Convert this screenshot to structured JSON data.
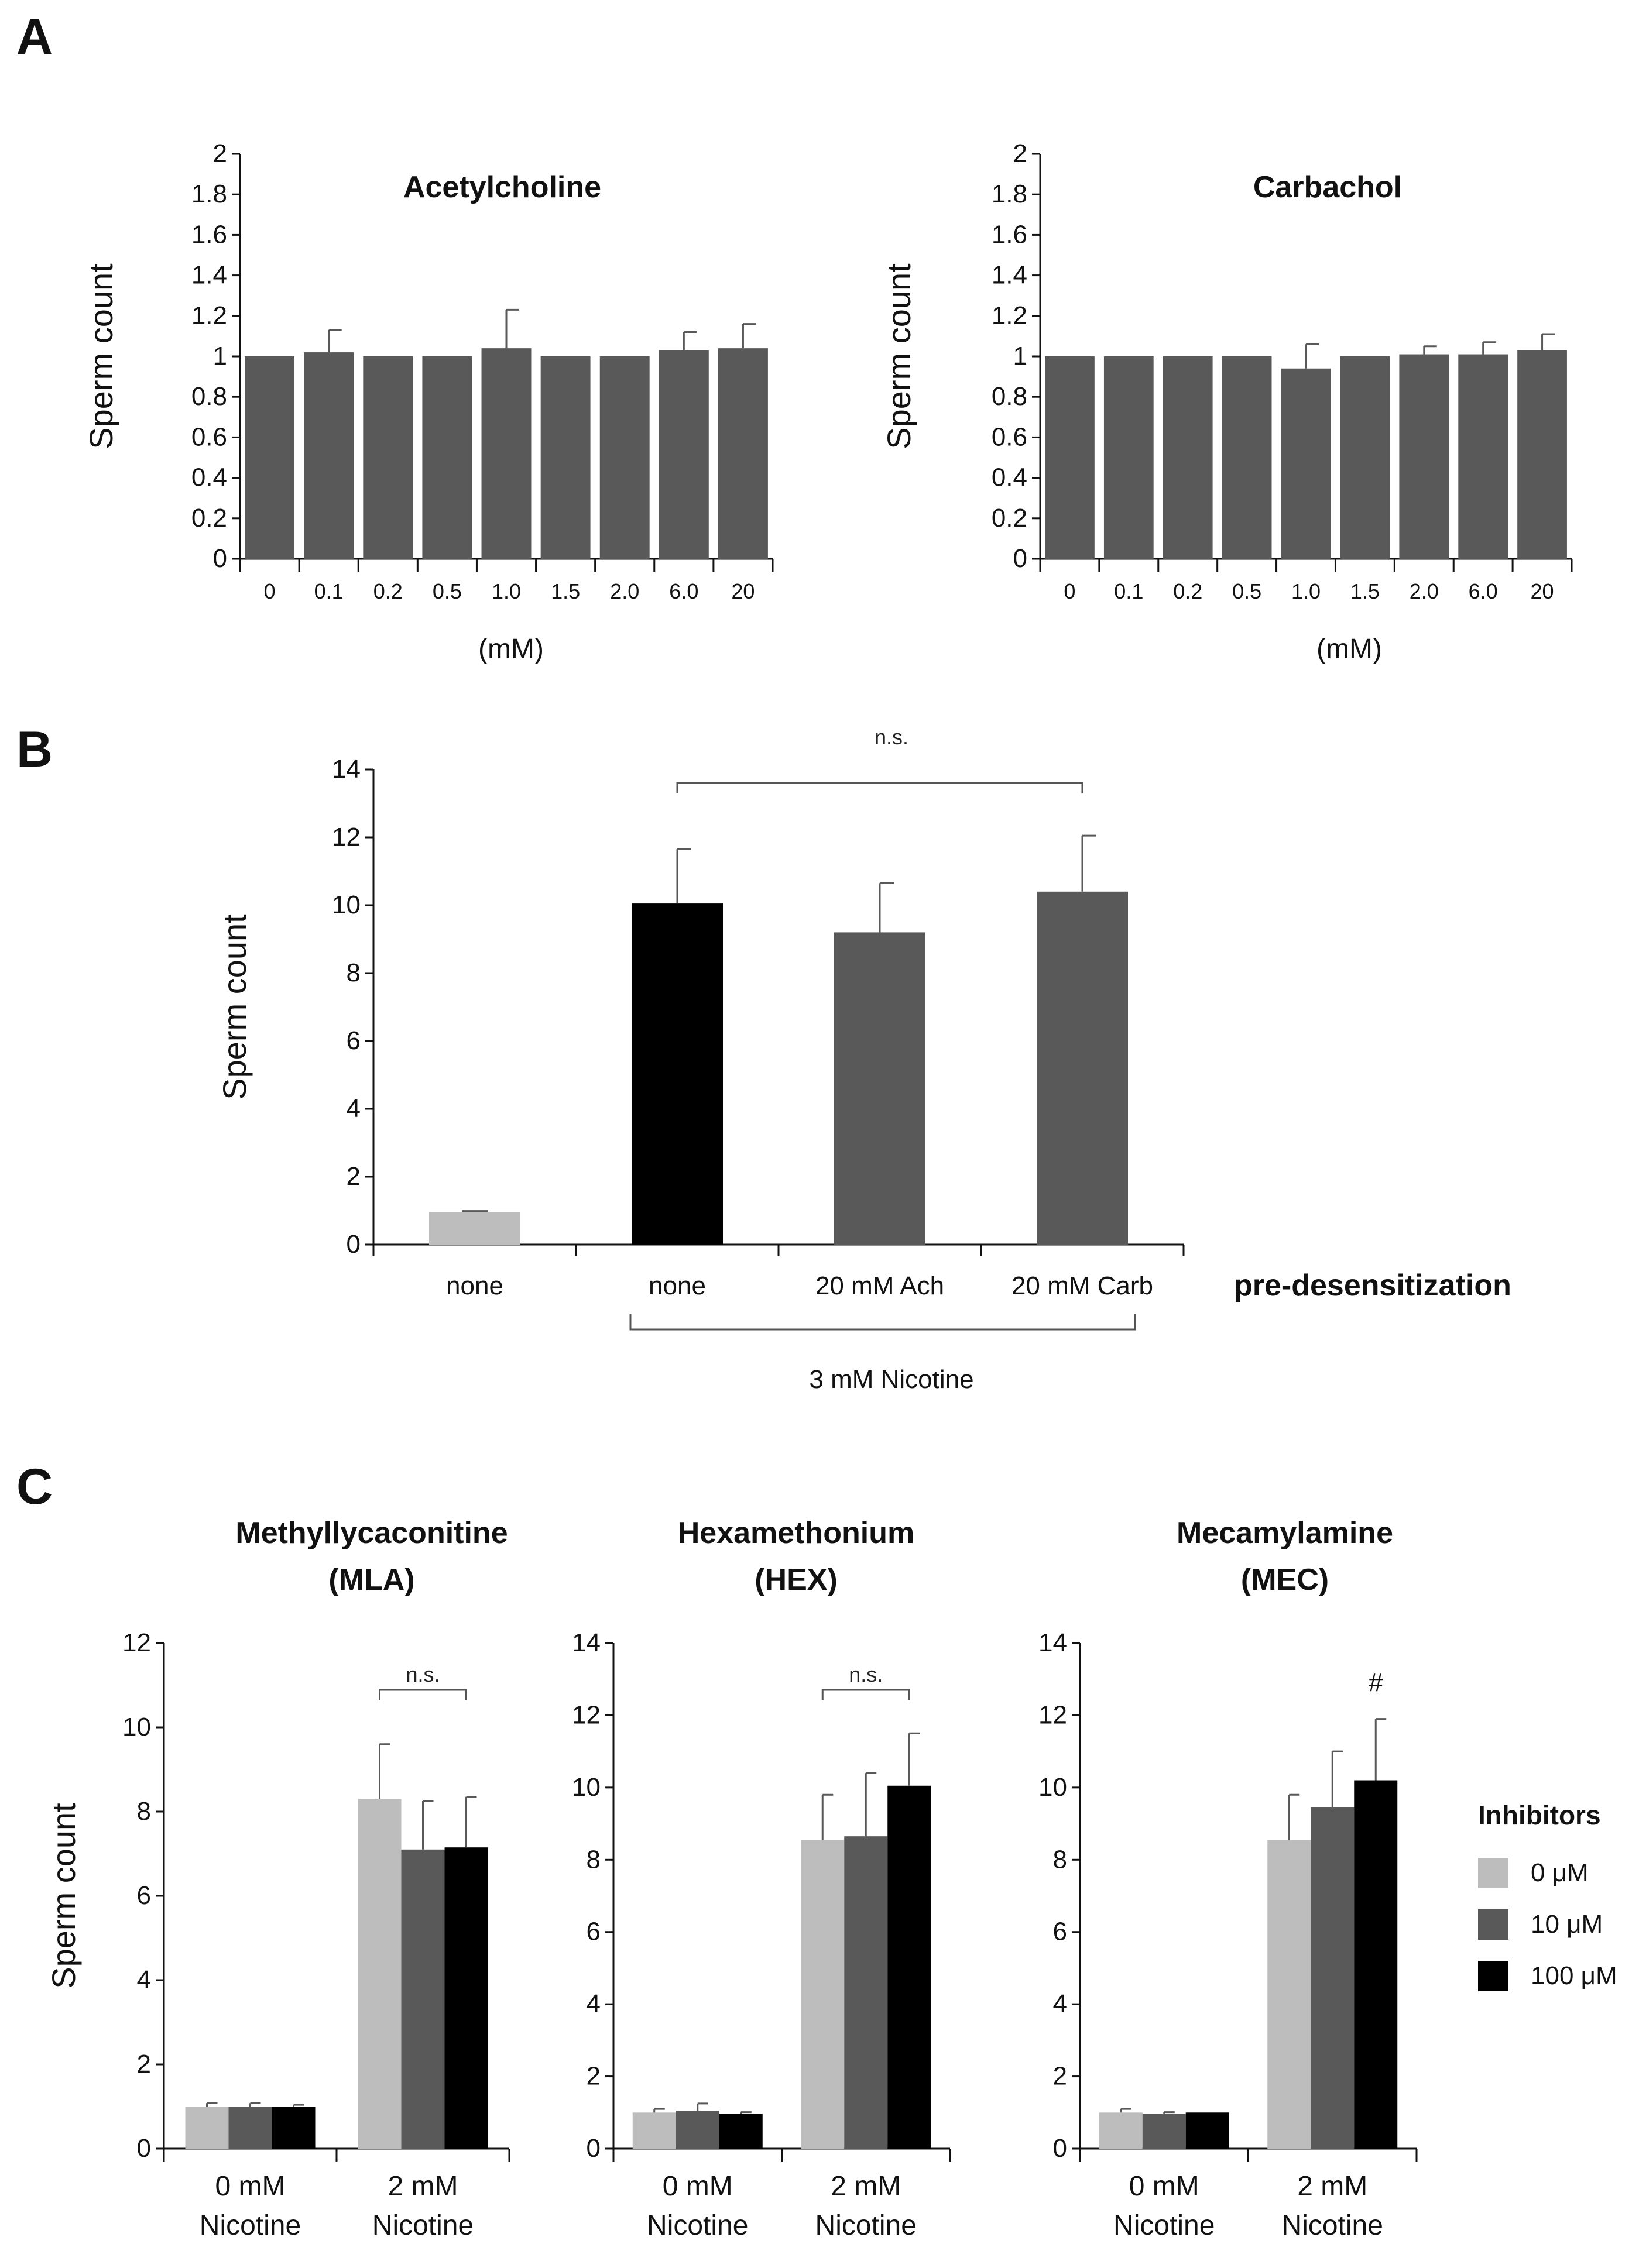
{
  "colors": {
    "light": "#bdbdbd",
    "dark": "#595959",
    "black": "#000000",
    "err": "#595959"
  },
  "panel_labels": [
    "A",
    "B",
    "C"
  ],
  "chart_data": [
    {
      "id": "A1",
      "type": "bar",
      "title": "Acetylcholine",
      "ylabel": "Sperm count",
      "xlabel": "(mM)",
      "ylim": [
        0,
        2
      ],
      "yticks": [
        "0",
        "0.2",
        "0.4",
        "0.6",
        "0.8",
        "1",
        "1.2",
        "1.4",
        "1.6",
        "1.8",
        "2"
      ],
      "categories": [
        "0",
        "0.1",
        "0.2",
        "0.5",
        "1.0",
        "1.5",
        "2.0",
        "6.0",
        "20"
      ],
      "values": [
        1.0,
        1.02,
        1.0,
        1.0,
        1.04,
        1.0,
        1.0,
        1.03,
        1.04
      ],
      "errors": [
        0.0,
        0.11,
        0.0,
        0.0,
        0.19,
        0.0,
        0.0,
        0.09,
        0.12
      ],
      "color": "dark"
    },
    {
      "id": "A2",
      "type": "bar",
      "title": "Carbachol",
      "ylabel": "Sperm count",
      "xlabel": "(mM)",
      "ylim": [
        0,
        2
      ],
      "yticks": [
        "0",
        "0.2",
        "0.4",
        "0.6",
        "0.8",
        "1",
        "1.2",
        "1.4",
        "1.6",
        "1.8",
        "2"
      ],
      "categories": [
        "0",
        "0.1",
        "0.2",
        "0.5",
        "1.0",
        "1.5",
        "2.0",
        "6.0",
        "20"
      ],
      "values": [
        1.0,
        1.0,
        1.0,
        1.0,
        0.94,
        1.0,
        1.01,
        1.01,
        1.03
      ],
      "errors": [
        0.0,
        0.0,
        0.0,
        0.0,
        0.12,
        0.0,
        0.04,
        0.06,
        0.08
      ],
      "color": "dark"
    },
    {
      "id": "B",
      "type": "bar",
      "ylabel": "Sperm count",
      "ylim": [
        0,
        14
      ],
      "yticks": [
        "0",
        "2",
        "4",
        "6",
        "8",
        "10",
        "12",
        "14"
      ],
      "categories": [
        "none",
        "none",
        "20 mM Ach",
        "20 mM Carb"
      ],
      "values": [
        0.95,
        10.05,
        9.2,
        10.4
      ],
      "errors": [
        0.04,
        1.6,
        1.45,
        1.65
      ],
      "bar_colors": [
        "light",
        "black",
        "dark",
        "dark"
      ],
      "axis_title": "pre-desensitization",
      "group_label": "3 mM Nicotine",
      "significance": "n.s."
    },
    {
      "id": "C1",
      "type": "bar",
      "title": [
        "Methyllycaconitine",
        "(MLA)"
      ],
      "ylabel": "Sperm count",
      "ylim": [
        0,
        12
      ],
      "yticks": [
        "0",
        "2",
        "4",
        "6",
        "8",
        "10",
        "12"
      ],
      "groups": [
        [
          "0 mM",
          "Nicotine"
        ],
        [
          "2 mM",
          "Nicotine"
        ]
      ],
      "series": [
        {
          "name": "0 μM",
          "color": "light",
          "values": [
            1.0,
            8.3
          ],
          "errors": [
            0.08,
            1.3
          ]
        },
        {
          "name": "10 μM",
          "color": "dark",
          "values": [
            1.0,
            7.1
          ],
          "errors": [
            0.08,
            1.15
          ]
        },
        {
          "name": "100 μM",
          "color": "black",
          "values": [
            1.0,
            7.15
          ],
          "errors": [
            0.04,
            1.2
          ]
        }
      ],
      "annotation": "n.s."
    },
    {
      "id": "C2",
      "type": "bar",
      "title": [
        "Hexamethonium",
        "(HEX)"
      ],
      "ylim": [
        0,
        14
      ],
      "yticks": [
        "0",
        "2",
        "4",
        "6",
        "8",
        "10",
        "12",
        "14"
      ],
      "groups": [
        [
          "0 mM",
          "Nicotine"
        ],
        [
          "2 mM",
          "Nicotine"
        ]
      ],
      "series": [
        {
          "name": "0 μM",
          "color": "light",
          "values": [
            1.0,
            8.55
          ],
          "errors": [
            0.1,
            1.25
          ]
        },
        {
          "name": "10 μM",
          "color": "dark",
          "values": [
            1.05,
            8.65
          ],
          "errors": [
            0.2,
            1.75
          ]
        },
        {
          "name": "100 μM",
          "color": "black",
          "values": [
            0.97,
            10.05
          ],
          "errors": [
            0.04,
            1.45
          ]
        }
      ],
      "annotation": "n.s."
    },
    {
      "id": "C3",
      "type": "bar",
      "title": [
        "Mecamylamine",
        "(MEC)"
      ],
      "ylim": [
        0,
        14
      ],
      "yticks": [
        "0",
        "2",
        "4",
        "6",
        "8",
        "10",
        "12",
        "14"
      ],
      "groups": [
        [
          "0 mM",
          "Nicotine"
        ],
        [
          "2 mM",
          "Nicotine"
        ]
      ],
      "series": [
        {
          "name": "0 μM",
          "color": "light",
          "values": [
            1.0,
            8.55
          ],
          "errors": [
            0.1,
            1.25
          ]
        },
        {
          "name": "10 μM",
          "color": "dark",
          "values": [
            0.97,
            9.45
          ],
          "errors": [
            0.04,
            1.55
          ]
        },
        {
          "name": "100 μM",
          "color": "black",
          "values": [
            1.0,
            10.2
          ],
          "errors": [
            0.0,
            1.7
          ]
        }
      ],
      "annotation": "#"
    }
  ],
  "legend": {
    "title": "Inhibitors",
    "items": [
      {
        "label": "0 μM",
        "color": "light"
      },
      {
        "label": "10 μM",
        "color": "dark"
      },
      {
        "label": "100 μM",
        "color": "black"
      }
    ]
  }
}
